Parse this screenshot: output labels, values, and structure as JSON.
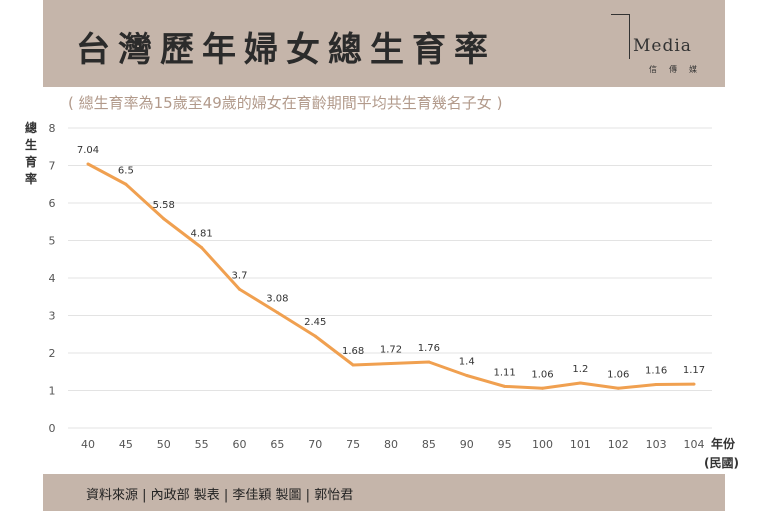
{
  "header": {
    "title": "台灣歷年婦女總生育率",
    "logo_text": "Media",
    "logo_sub": "信傳媒"
  },
  "subtitle": "( 總生育率為15歲至49歲的婦女在育齡期間平均共生育幾名子女 )",
  "footer": "資料來源 | 內政部  製表 | 李佳穎   製圖 | 郭怡君",
  "colors": {
    "line": "#f0a050",
    "band": "#c5b5aa"
  },
  "chart_data": {
    "type": "line",
    "title": "台灣歷年婦女總生育率",
    "ylabel": "總生育率",
    "xlabel": "年份",
    "xlabel2": "(民國)",
    "ylim": [
      0,
      8
    ],
    "yticks": [
      0,
      1,
      2,
      3,
      4,
      5,
      6,
      7,
      8
    ],
    "grid": true,
    "categories": [
      "40",
      "45",
      "50",
      "55",
      "60",
      "65",
      "70",
      "75",
      "80",
      "85",
      "90",
      "95",
      "100",
      "101",
      "102",
      "103",
      "104"
    ],
    "values": [
      7.04,
      6.5,
      5.58,
      4.81,
      3.7,
      3.08,
      2.45,
      1.68,
      1.72,
      1.76,
      1.4,
      1.11,
      1.06,
      1.2,
      1.06,
      1.16,
      1.17
    ]
  }
}
